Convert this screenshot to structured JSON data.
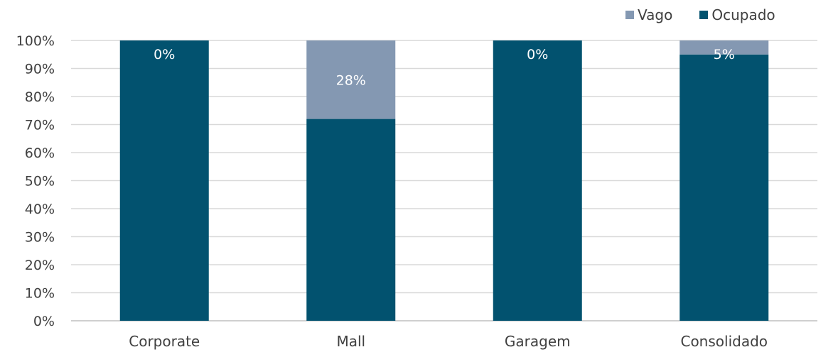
{
  "chart_data": {
    "type": "bar",
    "stacked": true,
    "percent": true,
    "categories": [
      "Corporate",
      "Mall",
      "Garagem",
      "Consolidado"
    ],
    "series": [
      {
        "name": "Ocupado",
        "color": "#02526F",
        "values": [
          100,
          72,
          100,
          95
        ]
      },
      {
        "name": "Vago",
        "color": "#8498B2",
        "values": [
          0,
          28,
          0,
          5
        ]
      }
    ],
    "data_labels": [
      "0%",
      "28%",
      "0%",
      "5%"
    ],
    "y_ticks": [
      "0%",
      "10%",
      "20%",
      "30%",
      "40%",
      "50%",
      "60%",
      "70%",
      "80%",
      "90%",
      "100%"
    ],
    "ylim": [
      0,
      100
    ],
    "grid": true,
    "legend_position": "top-right"
  },
  "legend": {
    "items": [
      {
        "label": "Vago",
        "color": "#8498B2"
      },
      {
        "label": "Ocupado",
        "color": "#02526F"
      }
    ]
  }
}
